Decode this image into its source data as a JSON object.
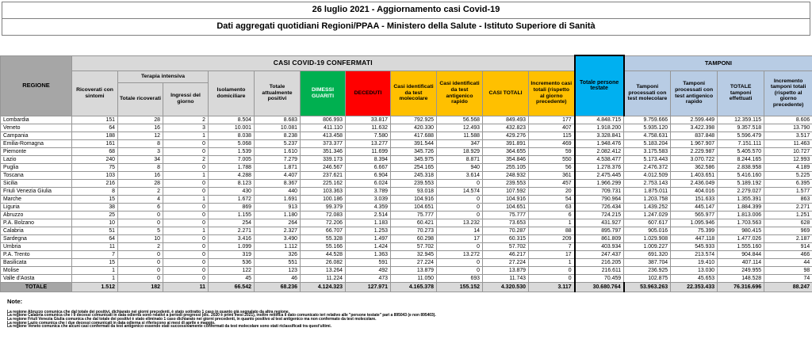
{
  "title": {
    "line1": "26 luglio 2021 - Aggiornamento casi Covid-19",
    "line2": "Dati aggregati quotidiani Regioni/PPAA - Ministero della Salute - Istituto Superiore di Sanità"
  },
  "colors": {
    "green": "#00b050",
    "red": "#ff0000",
    "yellow": "#ffc000",
    "cyan": "#00b0f0",
    "light_blue": "#b8cce4",
    "header_gray": "#a6a6a6",
    "cell_gray": "#d9d9d9"
  },
  "table": {
    "group_headers": {
      "regione": "REGIONE",
      "confermati": "CASI COVID-19 CONFERMATI",
      "terapia_intensiva": "Terapia intensiva",
      "testate": "Totale persone testate",
      "tamponi": "TAMPONI"
    },
    "col_headers": {
      "ricoverati": "Ricoverati con sintomi",
      "ti_totale": "Totale ricoverati",
      "ti_ingressi": "Ingressi del giorno",
      "isolamento": "Isolamento domiciliare",
      "positivi": "Totale attualmente positivi",
      "dimessi": "DIMESSI GUARITI",
      "deceduti": "DECEDUTI",
      "casi_molecolare": "Casi identificati da test molecolare",
      "casi_antigenico": "Casi identificati da test antigenico rapido",
      "casi_totali": "CASI TOTALI",
      "incremento_casi": "Incremento casi totali (rispetto al giorno precedente)",
      "tamponi_molecolare": "Tamponi processati con test molecolare",
      "tamponi_antigenico": "Tamponi processati con test antigenico rapido",
      "tamponi_totale": "TOTALE tamponi effettuati",
      "incremento_tamponi": "Incremento tamponi totali (rispetto al giorno precedente)"
    },
    "col_keys": [
      "ricoverati",
      "ti-totale",
      "ti-ingressi",
      "isolamento",
      "positivi",
      "dimessi",
      "deceduti",
      "casi-molecolare",
      "casi-antigenico",
      "casi-totali",
      "incremento-casi",
      "testate",
      "tamponi-molecolare",
      "tamponi-antigenico",
      "tamponi-totale",
      "incremento-tamponi"
    ],
    "rows": [
      {
        "region": "Lombardia",
        "values": [
          "151",
          "28",
          "2",
          "8.504",
          "8.683",
          "806.993",
          "33.817",
          "792.925",
          "56.568",
          "849.493",
          "177",
          "4.848.715",
          "9.759.666",
          "2.599.449",
          "12.359.115",
          "8.606"
        ]
      },
      {
        "region": "Veneto",
        "values": [
          "64",
          "16",
          "3",
          "10.001",
          "10.081",
          "411.110",
          "11.632",
          "420.330",
          "12.493",
          "432.823",
          "407",
          "1.918.200",
          "5.935.120",
          "3.422.398",
          "9.357.518",
          "13.790"
        ]
      },
      {
        "region": "Campania",
        "values": [
          "188",
          "12",
          "1",
          "8.038",
          "8.238",
          "413.458",
          "7.580",
          "417.688",
          "11.588",
          "429.276",
          "115",
          "3.328.841",
          "4.758.631",
          "837.848",
          "5.596.479",
          "3.517"
        ]
      },
      {
        "region": "Emilia-Romagna",
        "values": [
          "161",
          "8",
          "0",
          "5.068",
          "5.237",
          "373.377",
          "13.277",
          "391.544",
          "347",
          "391.891",
          "469",
          "1.948.476",
          "5.183.204",
          "1.967.907",
          "7.151.111",
          "11.463"
        ]
      },
      {
        "region": "Piemonte",
        "values": [
          "68",
          "3",
          "0",
          "1.539",
          "1.610",
          "351.346",
          "11.699",
          "345.726",
          "18.929",
          "364.655",
          "59",
          "2.082.412",
          "3.175.583",
          "2.229.987",
          "5.405.570",
          "10.727"
        ]
      },
      {
        "region": "Lazio",
        "values": [
          "240",
          "34",
          "2",
          "7.005",
          "7.279",
          "339.173",
          "8.394",
          "345.975",
          "8.871",
          "354.846",
          "550",
          "4.538.477",
          "5.173.443",
          "3.070.722",
          "8.244.165",
          "12.993"
        ]
      },
      {
        "region": "Puglia",
        "values": [
          "75",
          "8",
          "0",
          "1.788",
          "1.871",
          "246.567",
          "6.667",
          "254.165",
          "940",
          "255.105",
          "56",
          "1.278.376",
          "2.476.372",
          "362.586",
          "2.838.958",
          "4.189"
        ]
      },
      {
        "region": "Toscana",
        "values": [
          "103",
          "16",
          "1",
          "4.288",
          "4.407",
          "237.621",
          "6.904",
          "245.318",
          "3.614",
          "248.932",
          "361",
          "2.475.445",
          "4.012.509",
          "1.403.651",
          "5.416.160",
          "5.225"
        ]
      },
      {
        "region": "Sicilia",
        "values": [
          "216",
          "28",
          "0",
          "8.123",
          "8.367",
          "225.162",
          "6.024",
          "239.553",
          "0",
          "239.553",
          "457",
          "1.966.299",
          "2.753.143",
          "2.436.049",
          "5.189.192",
          "6.395"
        ]
      },
      {
        "region": "Friuli Venezia Giulia",
        "values": [
          "8",
          "2",
          "0",
          "430",
          "440",
          "103.363",
          "3.789",
          "93.018",
          "14.574",
          "107.592",
          "20",
          "709.731",
          "1.875.011",
          "404.016",
          "2.279.027",
          "1.577"
        ]
      },
      {
        "region": "Marche",
        "values": [
          "15",
          "4",
          "1",
          "1.672",
          "1.691",
          "100.186",
          "3.039",
          "104.916",
          "0",
          "104.916",
          "54",
          "790.964",
          "1.203.758",
          "151.633",
          "1.355.391",
          "863"
        ]
      },
      {
        "region": "Liguria",
        "values": [
          "38",
          "6",
          "0",
          "869",
          "913",
          "99.379",
          "4.359",
          "104.651",
          "0",
          "104.651",
          "63",
          "726.434",
          "1.439.252",
          "445.147",
          "1.884.399",
          "2.271"
        ]
      },
      {
        "region": "Abruzzo",
        "values": [
          "25",
          "0",
          "0",
          "1.155",
          "1.180",
          "72.083",
          "2.514",
          "75.777",
          "0",
          "75.777",
          "6",
          "724.215",
          "1.247.029",
          "565.977",
          "1.813.006",
          "1.251"
        ]
      },
      {
        "region": "P.A. Bolzano",
        "values": [
          "10",
          "0",
          "0",
          "254",
          "264",
          "72.206",
          "1.183",
          "60.421",
          "13.232",
          "73.653",
          "1",
          "431.927",
          "607.617",
          "1.095.946",
          "1.703.563",
          "628"
        ]
      },
      {
        "region": "Calabria",
        "values": [
          "51",
          "5",
          "1",
          "2.271",
          "2.327",
          "66.707",
          "1.253",
          "70.273",
          "14",
          "70.287",
          "88",
          "895.797",
          "905.016",
          "75.399",
          "980.415",
          "969"
        ]
      },
      {
        "region": "Sardegna",
        "values": [
          "64",
          "10",
          "0",
          "3.416",
          "3.490",
          "55.328",
          "1.497",
          "60.298",
          "17",
          "60.315",
          "209",
          "861.809",
          "1.029.908",
          "447.118",
          "1.477.026",
          "2.187"
        ]
      },
      {
        "region": "Umbria",
        "values": [
          "11",
          "2",
          "0",
          "1.099",
          "1.112",
          "55.166",
          "1.424",
          "57.702",
          "0",
          "57.702",
          "7",
          "403.934",
          "1.009.227",
          "545.933",
          "1.555.160",
          "914"
        ]
      },
      {
        "region": "P.A. Trento",
        "values": [
          "7",
          "0",
          "0",
          "319",
          "326",
          "44.528",
          "1.363",
          "32.945",
          "13.272",
          "46.217",
          "17",
          "247.437",
          "691.320",
          "213.574",
          "904.844",
          "466"
        ]
      },
      {
        "region": "Basilicata",
        "values": [
          "15",
          "0",
          "0",
          "536",
          "551",
          "26.082",
          "591",
          "27.224",
          "0",
          "27.224",
          "1",
          "216.205",
          "387.704",
          "19.410",
          "407.114",
          "44"
        ]
      },
      {
        "region": "Molise",
        "values": [
          "1",
          "0",
          "0",
          "122",
          "123",
          "13.264",
          "492",
          "13.879",
          "0",
          "13.879",
          "0",
          "216.611",
          "236.925",
          "13.030",
          "249.955",
          "98"
        ]
      },
      {
        "region": "Valle d'Aosta",
        "values": [
          "1",
          "0",
          "0",
          "45",
          "46",
          "11.224",
          "473",
          "11.050",
          "693",
          "11.743",
          "0",
          "70.459",
          "102.875",
          "45.653",
          "148.528",
          "74"
        ]
      }
    ],
    "total": {
      "label": "TOTALE",
      "values": [
        "1.512",
        "182",
        "11",
        "66.542",
        "68.236",
        "4.124.323",
        "127.971",
        "4.165.378",
        "155.152",
        "4.320.530",
        "3.117",
        "30.680.764",
        "53.963.263",
        "22.353.433",
        "76.316.696",
        "88.247"
      ]
    }
  },
  "notes": {
    "heading": "Note:",
    "items": [
      "La regione Abruzzo comunica che dal totale dei positivi, dichiarato nei giorni precedenti, è stato sottratto 1 caso in quanto già segnalato da altra regione.",
      "La regione Calabria comunica che i 9 decessi comunicati in data odierna sono relativi a periodi pregressi (dic. 2020 e primi mesi 2021), inoltre rettifica il dato comunicato ieri relativo alle \"persone testate\" pari a 895043 (e non 895403).",
      "La regione Friuli Venezia Giulia comunica che dal totale dei positivi è stato eliminato 1 caso dichiarato nei giorni precedenti, in quanto positivo al test antigenico ma non confermato da test molecolare.",
      "La regione Lazio comunica che i due decessi comunicati in data odierna si riferiscono ai mesi di aprile e maggio.",
      "La regione Veneto comunica che alcuni casi confermati da test antigenico essendo stati successivamente confermati da test molecolare sono stati riclassificati tra quest'ultimi."
    ]
  }
}
